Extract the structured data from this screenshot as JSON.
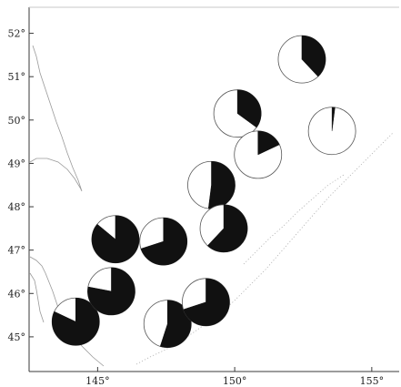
{
  "map": {
    "x_axis": {
      "range": [
        142.5,
        156
      ],
      "tick_values": [
        145,
        150,
        155
      ],
      "tick_labels": [
        "145°",
        "150°",
        "155°"
      ]
    },
    "y_axis": {
      "range": [
        44.2,
        52.6
      ],
      "tick_values": [
        45,
        46,
        47,
        48,
        49,
        50,
        51,
        52
      ],
      "tick_labels": [
        "45°",
        "46°",
        "47°",
        "48°",
        "49°",
        "50°",
        "51°",
        "52°"
      ]
    },
    "colors": {
      "filled": "#111111",
      "open": "#ffffff",
      "coastline": "#9a9a9a"
    },
    "stations": [
      {
        "lon": 144.2,
        "lat": 45.35,
        "filled_fraction": 0.82
      },
      {
        "lon": 145.5,
        "lat": 46.05,
        "filled_fraction": 0.78
      },
      {
        "lon": 145.65,
        "lat": 47.25,
        "filled_fraction": 0.86
      },
      {
        "lon": 147.4,
        "lat": 47.2,
        "filled_fraction": 0.7
      },
      {
        "lon": 147.55,
        "lat": 45.3,
        "filled_fraction": 0.55
      },
      {
        "lon": 148.95,
        "lat": 45.8,
        "filled_fraction": 0.7
      },
      {
        "lon": 149.15,
        "lat": 48.5,
        "filled_fraction": 0.52
      },
      {
        "lon": 149.6,
        "lat": 47.5,
        "filled_fraction": 0.62
      },
      {
        "lon": 150.1,
        "lat": 50.15,
        "filled_fraction": 0.35
      },
      {
        "lon": 150.85,
        "lat": 49.2,
        "filled_fraction": 0.18
      },
      {
        "lon": 152.45,
        "lat": 51.4,
        "filled_fraction": 0.38
      },
      {
        "lon": 153.55,
        "lat": 49.75,
        "filled_fraction": 0.02
      }
    ]
  }
}
